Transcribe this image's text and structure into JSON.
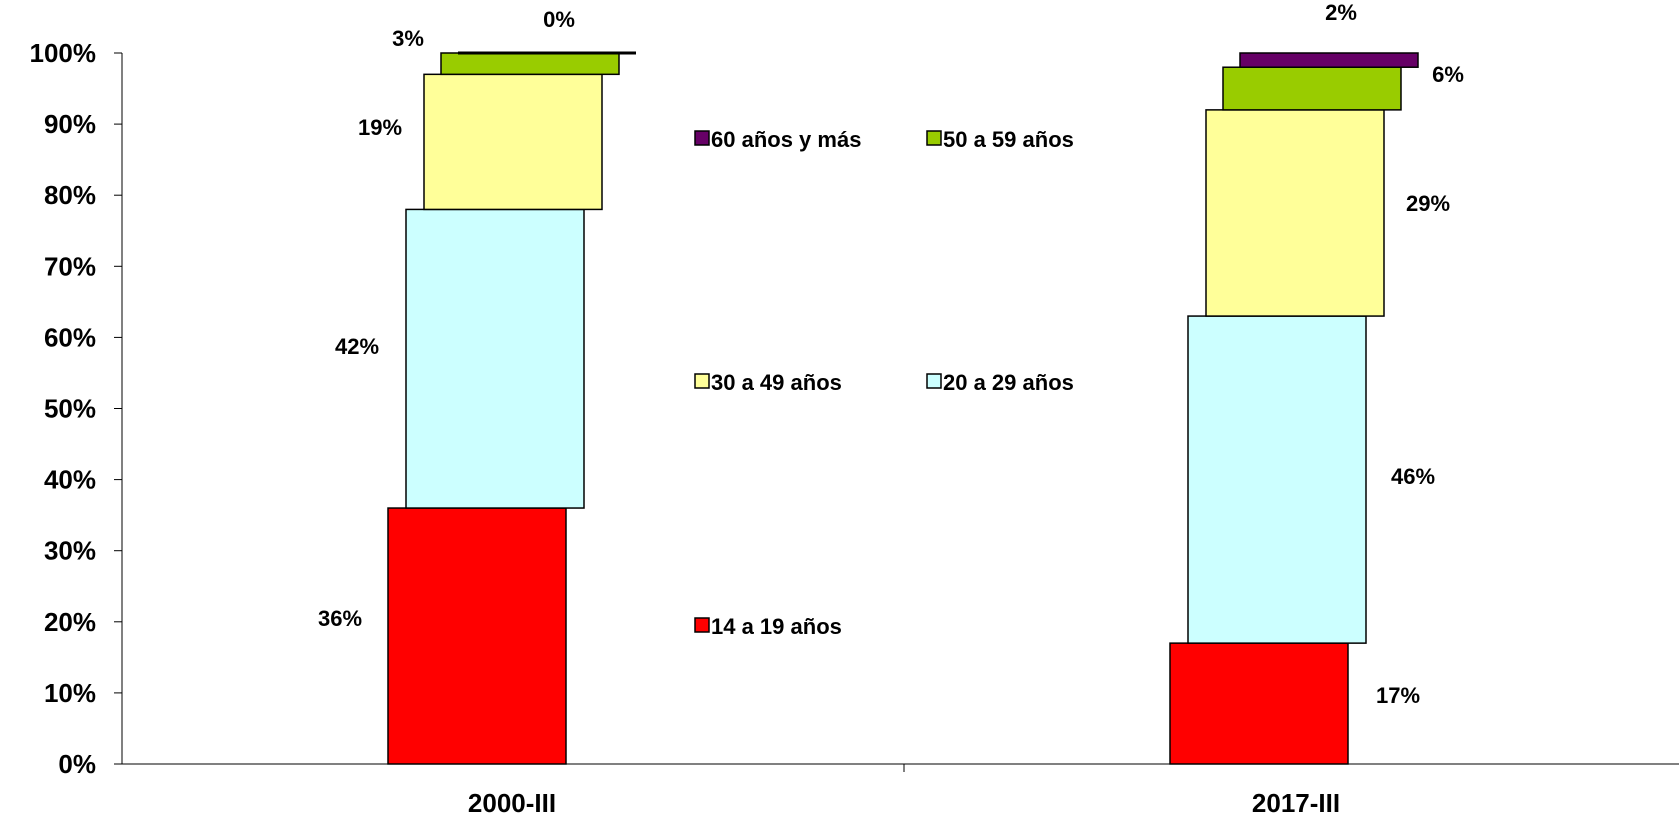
{
  "chart_data": {
    "type": "bar",
    "stacked": true,
    "categories": [
      "2000-III",
      "2017-III"
    ],
    "series": [
      {
        "name": "14 a 19 años",
        "values": [
          36,
          17
        ],
        "labels": [
          "36%",
          "17%"
        ],
        "color": "#ff0000"
      },
      {
        "name": "20 a 29 años",
        "values": [
          42,
          46
        ],
        "labels": [
          "42%",
          "46%"
        ],
        "color": "#ccffff"
      },
      {
        "name": "30 a 49 años",
        "values": [
          19,
          29
        ],
        "labels": [
          "19%",
          "29%"
        ],
        "color": "#ffff99"
      },
      {
        "name": "50 a 59 años",
        "values": [
          3,
          6
        ],
        "labels": [
          "3%",
          "6%"
        ],
        "color": "#99cc00"
      },
      {
        "name": "60 años y más",
        "values": [
          0,
          2
        ],
        "labels": [
          "0%",
          "2%"
        ],
        "color": "#660066"
      }
    ],
    "yticks": [
      "0%",
      "10%",
      "20%",
      "30%",
      "40%",
      "50%",
      "60%",
      "70%",
      "80%",
      "90%",
      "100%"
    ],
    "ylim": [
      0,
      100
    ],
    "grid": false,
    "legend_position": "center",
    "title": "",
    "xlabel": "",
    "ylabel": ""
  }
}
